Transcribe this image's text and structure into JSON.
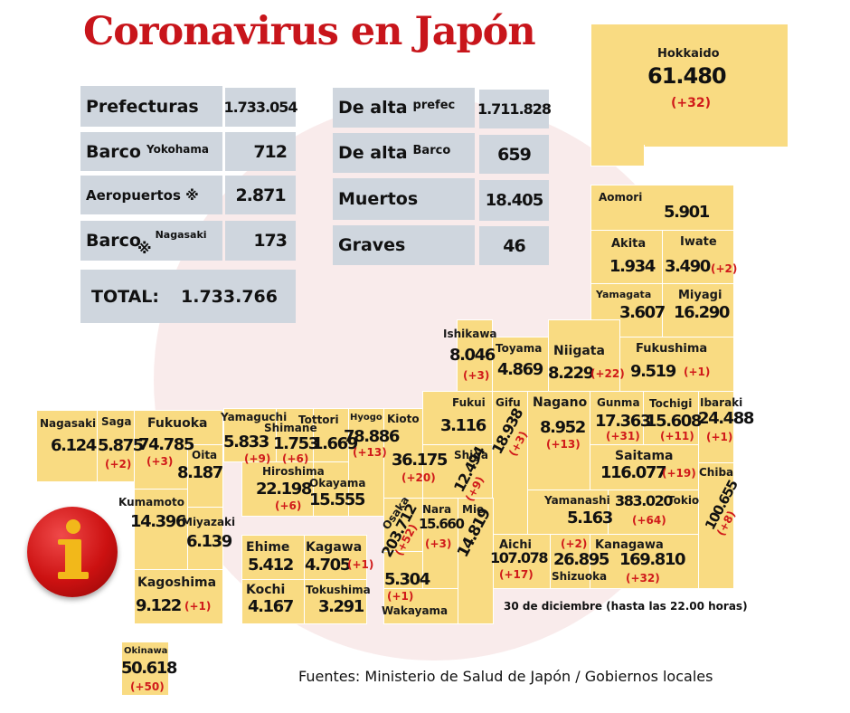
{
  "title": "Coronavirus en Japón",
  "summary": {
    "prefecturas_label": "Prefecturas",
    "prefecturas_value": "1.733.054",
    "barco_yokohama_label": "Barco",
    "barco_yokohama_sub": "Yokohama",
    "barco_yokohama_value": "712",
    "aeropuertos_label": "Aeropuertos ※",
    "aeropuertos_value": "2.871",
    "barco_nagasaki_label": "Barco",
    "barco_nagasaki_sub": "Nagasaki",
    "barco_nagasaki_mark": "※",
    "barco_nagasaki_value": "173",
    "total_label": "TOTAL:",
    "total_value": "1.733.766",
    "dealta_prefec_label": "De alta",
    "dealta_prefec_sub": "prefec",
    "dealta_prefec_value": "1.711.828",
    "dealta_barco_label": "De alta",
    "dealta_barco_sub": "Barco",
    "dealta_barco_value": "659",
    "muertos_label": "Muertos",
    "muertos_value": "18.405",
    "graves_label": "Graves",
    "graves_value": "46"
  },
  "prefectures": {
    "hokkaido": {
      "name": "Hokkaido",
      "value": "61.480",
      "inc": "(+32)"
    },
    "aomori": {
      "name": "Aomori",
      "value": "5.901"
    },
    "akita": {
      "name": "Akita",
      "value": "1.934"
    },
    "iwate": {
      "name": "Iwate",
      "value": "3.490",
      "inc": "(+2)"
    },
    "yamagata": {
      "name": "Yamagata",
      "value": "3.607"
    },
    "miyagi": {
      "name": "Miyagi",
      "value": "16.290"
    },
    "ishikawa": {
      "name": "Ishikawa",
      "value": "8.046",
      "inc": "(+3)"
    },
    "toyama": {
      "name": "Toyama",
      "value": "4.869"
    },
    "niigata": {
      "name": "Niigata",
      "value": "8.229",
      "inc": "(+22)"
    },
    "fukushima": {
      "name": "Fukushima",
      "value": "9.519",
      "inc": "(+1)"
    },
    "fukui": {
      "name": "Fukui",
      "value": "3.116"
    },
    "gifu": {
      "name": "Gifu",
      "value": "18.938",
      "inc": "(+3)"
    },
    "nagano": {
      "name": "Nagano",
      "value": "8.952",
      "inc": "(+13)"
    },
    "gunma": {
      "name": "Gunma",
      "value": "17.363",
      "inc": "(+31)"
    },
    "tochigi": {
      "name": "Tochigi",
      "value": "15.608",
      "inc": "(+11)"
    },
    "ibaraki": {
      "name": "Ibaraki",
      "value": "24.488",
      "inc": "(+1)"
    },
    "saitama": {
      "name": "Saitama",
      "value": "116.077",
      "inc": "(+19)"
    },
    "chiba": {
      "name": "Chiba",
      "value": "100.655",
      "inc": "(+8)"
    },
    "tokio": {
      "name": "Tokio",
      "value": "383.020",
      "inc": "(+64)"
    },
    "yamanashi": {
      "name": "Yamanashi",
      "value": "5.163"
    },
    "kanagawa": {
      "name": "Kanagawa",
      "value": "169.810",
      "inc": "(+32)"
    },
    "shizuoka": {
      "name": "Shizuoka",
      "value": "26.895",
      "inc": "(+2)"
    },
    "aichi": {
      "name": "Aichi",
      "value": "107.078",
      "inc": "(+17)"
    },
    "nagasaki": {
      "name": "Nagasaki",
      "value": "6.124"
    },
    "saga": {
      "name": "Saga",
      "value": "5.875",
      "inc": "(+2)"
    },
    "fukuoka": {
      "name": "Fukuoka",
      "value": "74.785",
      "inc": "(+3)"
    },
    "oita": {
      "name": "Oita",
      "value": "8.187"
    },
    "yamaguchi": {
      "name": "Yamaguchi",
      "value": "5.833",
      "inc": "(+9)"
    },
    "shimane": {
      "name": "Shimane",
      "value": "1.753",
      "inc": "(+6)"
    },
    "tottori": {
      "name": "Tottori",
      "value": "1.669"
    },
    "hyogo": {
      "name": "Hyogo",
      "value": "78.886",
      "inc": "(+13)"
    },
    "kioto": {
      "name": "Kioto",
      "value": "36.175",
      "inc": "(+20)"
    },
    "shiga": {
      "name": "Shiga",
      "value": "12.494",
      "inc": "(+9)"
    },
    "hiroshima": {
      "name": "Hiroshima",
      "value": "22.198",
      "inc": "(+6)"
    },
    "okayama": {
      "name": "Okayama",
      "value": "15.555"
    },
    "osaka": {
      "name": "Osaka",
      "value": "203.712",
      "inc": "(+52)"
    },
    "nara": {
      "name": "Nara",
      "value": "15.660",
      "inc": "(+3)"
    },
    "mie": {
      "name": "Mie",
      "value": "14.819"
    },
    "kumamoto": {
      "name": "Kumamoto",
      "value": "14.396"
    },
    "miyazaki": {
      "name": "Miyazaki",
      "value": "6.139"
    },
    "kagoshima": {
      "name": "Kagoshima",
      "value": "9.122",
      "inc": "(+1)"
    },
    "ehime": {
      "name": "Ehime",
      "value": "5.412"
    },
    "kagawa": {
      "name": "Kagawa",
      "value": "4.705",
      "inc": "(+1)"
    },
    "kochi": {
      "name": "Kochi",
      "value": "4.167"
    },
    "tokushima": {
      "name": "Tokushima",
      "value": "3.291"
    },
    "wakayama": {
      "name": "Wakayama",
      "value": "5.304",
      "inc": "(+1)"
    },
    "okinawa": {
      "name": "Okinawa",
      "value": "50.618",
      "inc": "(+50)"
    }
  },
  "date_note": "30 de diciembre  (hasta las  22.00 horas)",
  "sources": "Fuentes: Ministerio de Salud de Japón / Gobiernos locales",
  "colors": {
    "title": "#c8151b",
    "box_gray": "#cfd6de",
    "prefecture_fill": "#f9db82",
    "increment": "#d01a1a"
  },
  "icons": {
    "info": "info-icon"
  }
}
